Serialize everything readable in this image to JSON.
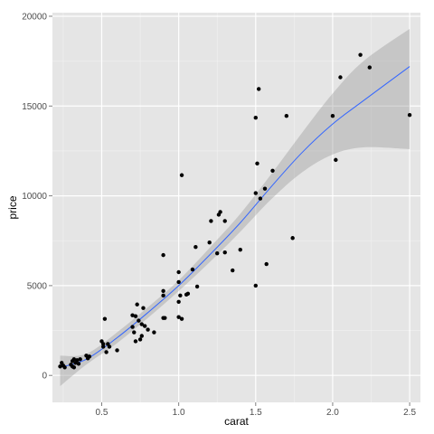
{
  "chart_data": {
    "type": "scatter",
    "title": "",
    "xlabel": "carat",
    "ylabel": "price",
    "xlim": [
      0.18,
      2.57
    ],
    "ylim": [
      -1500,
      20200
    ],
    "x_ticks": [
      0.5,
      1.0,
      1.5,
      2.0,
      2.5
    ],
    "x_tick_labels": [
      "0.5",
      "1.0",
      "1.5",
      "2.0",
      "2.5"
    ],
    "y_ticks": [
      0,
      5000,
      10000,
      15000,
      20000
    ],
    "y_tick_labels": [
      "0",
      "5000",
      "10000",
      "15000",
      "20000"
    ],
    "grid": true,
    "legend": "none",
    "colors": {
      "panel": "#e5e5e5",
      "grid_major": "#ffffff",
      "points": "#000000",
      "smooth_line": "#3366ff",
      "confidence_band": "#999999"
    },
    "points": [
      {
        "x": 0.23,
        "y": 500
      },
      {
        "x": 0.24,
        "y": 700
      },
      {
        "x": 0.25,
        "y": 550
      },
      {
        "x": 0.26,
        "y": 450
      },
      {
        "x": 0.3,
        "y": 600
      },
      {
        "x": 0.31,
        "y": 800
      },
      {
        "x": 0.31,
        "y": 500
      },
      {
        "x": 0.32,
        "y": 900
      },
      {
        "x": 0.32,
        "y": 450
      },
      {
        "x": 0.33,
        "y": 700
      },
      {
        "x": 0.34,
        "y": 850
      },
      {
        "x": 0.35,
        "y": 650
      },
      {
        "x": 0.36,
        "y": 900
      },
      {
        "x": 0.4,
        "y": 1100
      },
      {
        "x": 0.41,
        "y": 950
      },
      {
        "x": 0.42,
        "y": 1050
      },
      {
        "x": 0.5,
        "y": 1900
      },
      {
        "x": 0.51,
        "y": 1750
      },
      {
        "x": 0.51,
        "y": 1600
      },
      {
        "x": 0.52,
        "y": 3150
      },
      {
        "x": 0.53,
        "y": 1300
      },
      {
        "x": 0.54,
        "y": 1750
      },
      {
        "x": 0.55,
        "y": 1600
      },
      {
        "x": 0.6,
        "y": 1400
      },
      {
        "x": 0.7,
        "y": 2700
      },
      {
        "x": 0.7,
        "y": 3350
      },
      {
        "x": 0.71,
        "y": 2400
      },
      {
        "x": 0.72,
        "y": 3300
      },
      {
        "x": 0.72,
        "y": 1900
      },
      {
        "x": 0.73,
        "y": 3950
      },
      {
        "x": 0.74,
        "y": 3050
      },
      {
        "x": 0.75,
        "y": 2000
      },
      {
        "x": 0.76,
        "y": 2850
      },
      {
        "x": 0.76,
        "y": 2200
      },
      {
        "x": 0.77,
        "y": 3750
      },
      {
        "x": 0.78,
        "y": 2750
      },
      {
        "x": 0.8,
        "y": 2550
      },
      {
        "x": 0.84,
        "y": 2400
      },
      {
        "x": 0.9,
        "y": 6700
      },
      {
        "x": 0.9,
        "y": 4700
      },
      {
        "x": 0.9,
        "y": 4450
      },
      {
        "x": 0.9,
        "y": 3200
      },
      {
        "x": 0.91,
        "y": 3200
      },
      {
        "x": 1.0,
        "y": 5750
      },
      {
        "x": 1.0,
        "y": 5200
      },
      {
        "x": 1.0,
        "y": 4100
      },
      {
        "x": 1.0,
        "y": 3250
      },
      {
        "x": 1.01,
        "y": 4450
      },
      {
        "x": 1.02,
        "y": 11150
      },
      {
        "x": 1.02,
        "y": 3150
      },
      {
        "x": 1.05,
        "y": 4500
      },
      {
        "x": 1.06,
        "y": 4550
      },
      {
        "x": 1.09,
        "y": 5900
      },
      {
        "x": 1.11,
        "y": 7150
      },
      {
        "x": 1.12,
        "y": 4950
      },
      {
        "x": 1.2,
        "y": 7400
      },
      {
        "x": 1.21,
        "y": 8600
      },
      {
        "x": 1.25,
        "y": 6800
      },
      {
        "x": 1.26,
        "y": 8950
      },
      {
        "x": 1.27,
        "y": 9100
      },
      {
        "x": 1.3,
        "y": 8600
      },
      {
        "x": 1.3,
        "y": 6850
      },
      {
        "x": 1.35,
        "y": 5850
      },
      {
        "x": 1.4,
        "y": 7000
      },
      {
        "x": 1.5,
        "y": 14350
      },
      {
        "x": 1.5,
        "y": 10150
      },
      {
        "x": 1.5,
        "y": 5000
      },
      {
        "x": 1.51,
        "y": 11800
      },
      {
        "x": 1.52,
        "y": 15950
      },
      {
        "x": 1.53,
        "y": 9850
      },
      {
        "x": 1.56,
        "y": 10400
      },
      {
        "x": 1.57,
        "y": 6200
      },
      {
        "x": 1.61,
        "y": 11400
      },
      {
        "x": 1.7,
        "y": 14450
      },
      {
        "x": 1.74,
        "y": 7650
      },
      {
        "x": 2.0,
        "y": 14450
      },
      {
        "x": 2.02,
        "y": 12000
      },
      {
        "x": 2.05,
        "y": 16600
      },
      {
        "x": 2.18,
        "y": 17850
      },
      {
        "x": 2.24,
        "y": 17150
      },
      {
        "x": 2.5,
        "y": 14500
      }
    ],
    "smooth_line": {
      "method": "loess",
      "x": [
        0.23,
        0.4,
        0.6,
        0.8,
        1.0,
        1.2,
        1.4,
        1.6,
        1.8,
        2.0,
        2.2,
        2.5
      ],
      "y": [
        450,
        900,
        2100,
        3500,
        5000,
        6700,
        8500,
        10500,
        12400,
        14000,
        15300,
        17200
      ],
      "lower": [
        -600,
        600,
        1800,
        3200,
        4700,
        6300,
        8000,
        9800,
        11300,
        12300,
        12700,
        12600
      ],
      "upper": [
        1100,
        1200,
        2400,
        3800,
        5300,
        7100,
        9000,
        11200,
        13500,
        15700,
        17500,
        19300
      ]
    }
  }
}
